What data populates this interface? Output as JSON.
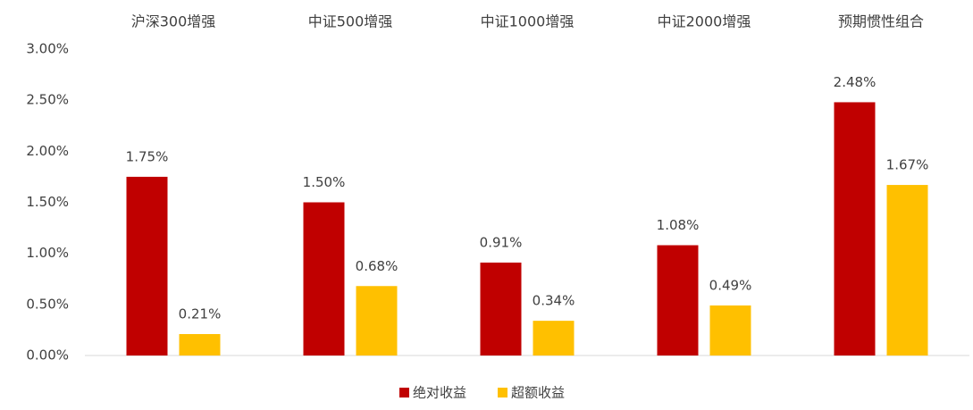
{
  "chart_data": {
    "type": "bar",
    "categories": [
      "沪深300增强",
      "中证500增强",
      "中证1000增强",
      "中证2000增强",
      "预期惯性组合"
    ],
    "series": [
      {
        "name": "绝对收益",
        "color": "#c00000",
        "values": [
          1.75,
          1.5,
          0.91,
          1.08,
          2.48
        ],
        "value_labels": [
          "1.75%",
          "1.50%",
          "0.91%",
          "1.08%",
          "2.48%"
        ]
      },
      {
        "name": "超额收益",
        "color": "#ffc000",
        "values": [
          0.21,
          0.68,
          0.34,
          0.49,
          1.67
        ],
        "value_labels": [
          "0.21%",
          "0.68%",
          "0.34%",
          "0.49%",
          "1.67%"
        ]
      }
    ],
    "ylim": [
      0,
      3
    ],
    "yticks": [
      {
        "value": 0,
        "label": "0.00%"
      },
      {
        "value": 0.5,
        "label": "0.50%"
      },
      {
        "value": 1,
        "label": "1.00%"
      },
      {
        "value": 1.5,
        "label": "1.50%"
      },
      {
        "value": 2,
        "label": "2.00%"
      },
      {
        "value": 2.5,
        "label": "2.50%"
      },
      {
        "value": 3,
        "label": "3.00%"
      }
    ],
    "legend": "bottom"
  }
}
